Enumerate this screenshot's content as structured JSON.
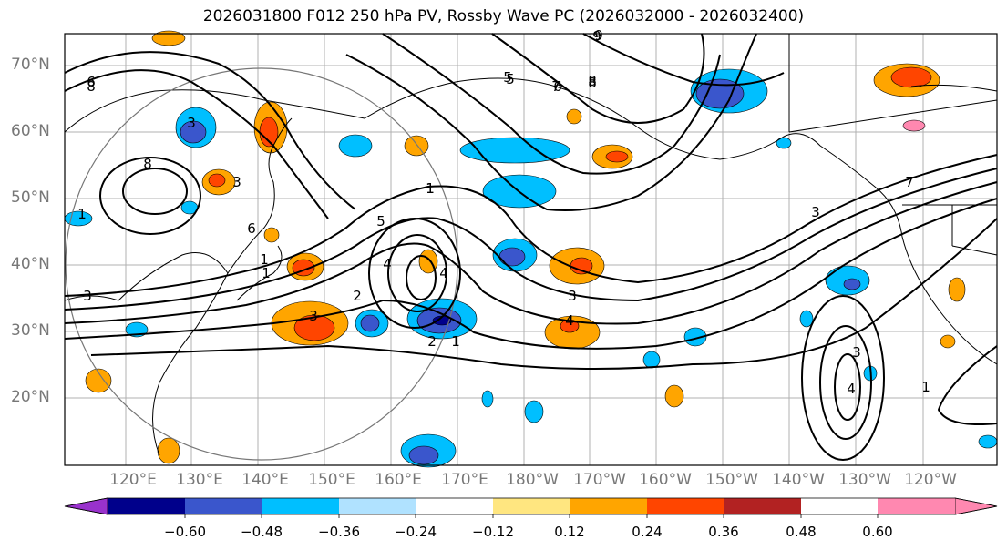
{
  "title": "2026031800 F012 250 hPa PV, Rossby Wave PC (2026032000 - 2026032400)",
  "lat_labels": [
    "70°N",
    "60°N",
    "50°N",
    "40°N",
    "30°N",
    "20°N"
  ],
  "lon_labels": [
    "120°E",
    "130°E",
    "140°E",
    "150°E",
    "160°E",
    "170°E",
    "180°W",
    "170°W",
    "160°W",
    "150°W",
    "140°W",
    "130°W",
    "120°W"
  ],
  "colorbar": {
    "ticks": [
      "−0.60",
      "−0.48",
      "−0.36",
      "−0.24",
      "−0.12",
      "0.12",
      "0.24",
      "0.36",
      "0.48",
      "0.60"
    ],
    "colors": [
      "#9932cc",
      "#00008b",
      "#3a56cc",
      "#00bfff",
      "#b0e2ff",
      "#ffffff",
      "#ffe680",
      "#ffa500",
      "#ff4500",
      "#b22222",
      "#ff88b0"
    ]
  },
  "contour_labels": [
    "8",
    "8",
    "6",
    "5",
    "4",
    "3",
    "1",
    "2",
    "3",
    "1",
    "1",
    "5",
    "7",
    "8",
    "9",
    "4",
    "3",
    "1",
    "4",
    "3",
    "2",
    "1",
    "3",
    "7",
    "4",
    "3",
    "1",
    "3",
    "6",
    "9",
    "5",
    "6",
    "8",
    "1"
  ],
  "colors": {
    "contour": "#000000",
    "grid": "#b0b0b0",
    "coast": "#000000",
    "axis_text": "#777777"
  }
}
